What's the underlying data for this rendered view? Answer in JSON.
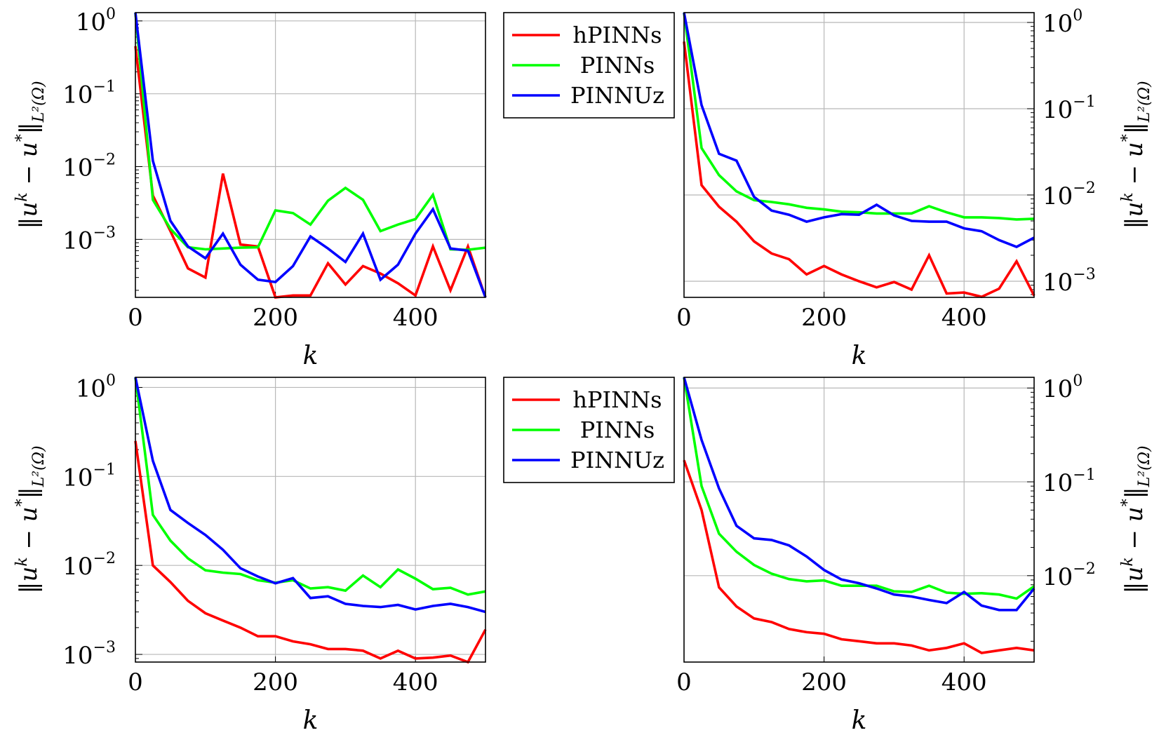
{
  "colors": {
    "hPINNs": "#ff0000",
    "PINNs": "#00ff00",
    "PINNUz": "#0000ff",
    "grid": "#b8b8b8",
    "frame": "#000000"
  },
  "axis_text": {
    "xlabel": "k",
    "ylabel_norm_left": "‖u",
    "ylabel_sup_k": "k",
    "ylabel_minus": " − u",
    "ylabel_sup_star": "*",
    "ylabel_norm_right": "‖",
    "ylabel_sub": "L²(Ω)"
  },
  "legend": {
    "entries": [
      "hPINNs",
      "PINNs",
      "PINNUz"
    ]
  },
  "chart_data": [
    {
      "type": "line",
      "panel": "top-left",
      "yscale": "log",
      "ylim": [
        0.00016,
        1.3
      ],
      "xlim": [
        0,
        500
      ],
      "x_ticks": [
        "0",
        "200",
        "400"
      ],
      "y_ticks": [
        {
          "base": "10",
          "exp": "0"
        },
        {
          "base": "10",
          "exp": "−1"
        },
        {
          "base": "10",
          "exp": "−2"
        },
        {
          "base": "10",
          "exp": "−3"
        }
      ],
      "y_axis_side": "left",
      "xlabel": "k",
      "grid": true,
      "x": [
        0,
        25,
        50,
        75,
        100,
        125,
        150,
        175,
        200,
        225,
        250,
        275,
        300,
        325,
        350,
        375,
        400,
        425,
        450,
        475,
        500
      ],
      "series": [
        {
          "name": "hPINNs",
          "values": [
            0.45,
            0.004,
            0.0013,
            0.0004,
            0.0003,
            0.008,
            0.00085,
            0.0008,
            0.00016,
            0.00017,
            0.00017,
            0.00047,
            0.00024,
            0.00043,
            0.00034,
            0.00025,
            0.00017,
            0.0008,
            0.0002,
            0.0008,
            0.00016
          ]
        },
        {
          "name": "PINNs",
          "values": [
            1.3,
            0.0035,
            0.0014,
            0.00078,
            0.00073,
            0.00075,
            0.00077,
            0.00078,
            0.0025,
            0.0023,
            0.0016,
            0.0034,
            0.0051,
            0.0035,
            0.0013,
            0.0016,
            0.0019,
            0.0041,
            0.00073,
            0.00072,
            0.00077
          ]
        },
        {
          "name": "PINNUz",
          "values": [
            1.3,
            0.012,
            0.0018,
            0.0008,
            0.00055,
            0.0012,
            0.00045,
            0.00028,
            0.00026,
            0.00043,
            0.0011,
            0.00075,
            0.00049,
            0.0012,
            0.00028,
            0.00045,
            0.0012,
            0.0026,
            0.00075,
            0.0007,
            0.00016
          ]
        }
      ]
    },
    {
      "type": "line",
      "panel": "top-right",
      "yscale": "log",
      "ylim": [
        0.00065,
        1.3
      ],
      "xlim": [
        0,
        500
      ],
      "x_ticks": [
        "0",
        "200",
        "400"
      ],
      "y_ticks": [
        {
          "base": "10",
          "exp": "0"
        },
        {
          "base": "10",
          "exp": "−1"
        },
        {
          "base": "10",
          "exp": "−2"
        },
        {
          "base": "10",
          "exp": "−3"
        }
      ],
      "y_axis_side": "right",
      "xlabel": "k",
      "grid": true,
      "x": [
        0,
        25,
        50,
        75,
        100,
        125,
        150,
        175,
        200,
        225,
        250,
        275,
        300,
        325,
        350,
        375,
        400,
        425,
        450,
        475,
        500
      ],
      "series": [
        {
          "name": "hPINNs",
          "values": [
            0.6,
            0.013,
            0.0073,
            0.0049,
            0.0029,
            0.0021,
            0.0018,
            0.0012,
            0.0015,
            0.0012,
            0.001,
            0.00085,
            0.00098,
            0.0008,
            0.002,
            0.00072,
            0.00074,
            0.00066,
            0.00082,
            0.0017,
            0.00068
          ]
        },
        {
          "name": "PINNs",
          "values": [
            1.3,
            0.035,
            0.017,
            0.011,
            0.0087,
            0.0083,
            0.0078,
            0.0071,
            0.0068,
            0.0064,
            0.0063,
            0.0061,
            0.0061,
            0.0061,
            0.0074,
            0.0063,
            0.0055,
            0.0055,
            0.0054,
            0.0052,
            0.0053
          ]
        },
        {
          "name": "PINNUz",
          "values": [
            1.3,
            0.11,
            0.03,
            0.025,
            0.0095,
            0.0066,
            0.0059,
            0.0049,
            0.0055,
            0.006,
            0.0059,
            0.0077,
            0.0058,
            0.005,
            0.0049,
            0.0049,
            0.0041,
            0.0038,
            0.003,
            0.0025,
            0.0032
          ]
        }
      ]
    },
    {
      "type": "line",
      "panel": "bottom-left",
      "yscale": "log",
      "ylim": [
        0.00082,
        1.3
      ],
      "xlim": [
        0,
        500
      ],
      "x_ticks": [
        "0",
        "200",
        "400"
      ],
      "y_ticks": [
        {
          "base": "10",
          "exp": "0"
        },
        {
          "base": "10",
          "exp": "−1"
        },
        {
          "base": "10",
          "exp": "−2"
        },
        {
          "base": "10",
          "exp": "−3"
        }
      ],
      "y_axis_side": "left",
      "xlabel": "k",
      "grid": true,
      "x": [
        0,
        25,
        50,
        75,
        100,
        125,
        150,
        175,
        200,
        225,
        250,
        275,
        300,
        325,
        350,
        375,
        400,
        425,
        450,
        475,
        500
      ],
      "series": [
        {
          "name": "hPINNs",
          "values": [
            0.25,
            0.01,
            0.0065,
            0.004,
            0.0029,
            0.0024,
            0.002,
            0.0016,
            0.0016,
            0.0014,
            0.0013,
            0.00115,
            0.00115,
            0.0011,
            0.0009,
            0.0011,
            0.0009,
            0.00092,
            0.00097,
            0.00082,
            0.0019
          ]
        },
        {
          "name": "PINNs",
          "values": [
            1.3,
            0.037,
            0.019,
            0.012,
            0.0088,
            0.0083,
            0.008,
            0.0068,
            0.0064,
            0.0068,
            0.0055,
            0.0057,
            0.0052,
            0.0077,
            0.0057,
            0.009,
            0.0071,
            0.0054,
            0.0056,
            0.0047,
            0.0051
          ]
        },
        {
          "name": "PINNUz",
          "values": [
            1.3,
            0.15,
            0.042,
            0.03,
            0.022,
            0.015,
            0.0093,
            0.0075,
            0.0063,
            0.0072,
            0.0043,
            0.0045,
            0.0037,
            0.0035,
            0.0034,
            0.0036,
            0.0032,
            0.0035,
            0.0037,
            0.0034,
            0.003
          ]
        }
      ]
    },
    {
      "type": "line",
      "panel": "bottom-right",
      "yscale": "log",
      "ylim": [
        0.0012,
        1.3
      ],
      "xlim": [
        0,
        500
      ],
      "x_ticks": [
        "0",
        "200",
        "400"
      ],
      "y_ticks": [
        {
          "base": "10",
          "exp": "0"
        },
        {
          "base": "10",
          "exp": "−1"
        },
        {
          "base": "10",
          "exp": "−2"
        }
      ],
      "y_axis_side": "right",
      "xlabel": "k",
      "grid": true,
      "x": [
        0,
        25,
        50,
        75,
        100,
        125,
        150,
        175,
        200,
        225,
        250,
        275,
        300,
        325,
        350,
        375,
        400,
        425,
        450,
        475,
        500
      ],
      "series": [
        {
          "name": "hPINNs",
          "values": [
            0.17,
            0.05,
            0.0075,
            0.0047,
            0.0035,
            0.0032,
            0.0027,
            0.0025,
            0.0024,
            0.0021,
            0.002,
            0.0019,
            0.0019,
            0.0018,
            0.0016,
            0.0017,
            0.0019,
            0.0015,
            0.0016,
            0.0017,
            0.0016
          ]
        },
        {
          "name": "PINNs",
          "values": [
            1.3,
            0.09,
            0.028,
            0.018,
            0.013,
            0.0105,
            0.0092,
            0.0087,
            0.0089,
            0.0078,
            0.0078,
            0.0078,
            0.0068,
            0.0067,
            0.0078,
            0.0066,
            0.0064,
            0.0065,
            0.0063,
            0.0057,
            0.0077
          ]
        },
        {
          "name": "PINNUz",
          "values": [
            1.3,
            0.28,
            0.085,
            0.034,
            0.025,
            0.024,
            0.021,
            0.016,
            0.0115,
            0.0091,
            0.0083,
            0.0073,
            0.0063,
            0.006,
            0.0055,
            0.0051,
            0.0067,
            0.0048,
            0.0043,
            0.0043,
            0.0073
          ]
        }
      ]
    }
  ]
}
